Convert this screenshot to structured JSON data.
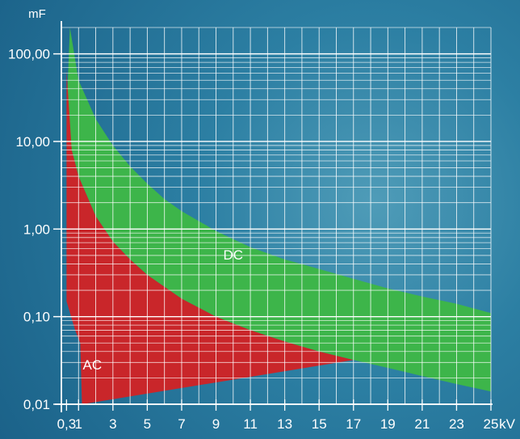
{
  "chart_data": {
    "type": "area",
    "title": "",
    "xlabel": "kV",
    "ylabel": "mF",
    "x_scale": "linear",
    "y_scale": "log",
    "xlim": [
      0,
      25
    ],
    "ylim": [
      0.01,
      200
    ],
    "grid": true,
    "x_tick_labels": [
      "0,3",
      "1",
      "3",
      "5",
      "7",
      "9",
      "11",
      "13",
      "15",
      "17",
      "19",
      "21",
      "23",
      "25"
    ],
    "x_tick_values": [
      0.3,
      1,
      3,
      5,
      7,
      9,
      11,
      13,
      15,
      17,
      19,
      21,
      23,
      25
    ],
    "y_tick_labels": [
      "0,01",
      "0,10",
      "1,00",
      "10,00",
      "100,00"
    ],
    "y_tick_values": [
      0.01,
      0.1,
      1,
      10,
      100
    ],
    "series": [
      {
        "name": "DC",
        "color": "#3db54a",
        "upper": [
          [
            0.5,
            200
          ],
          [
            1,
            50
          ],
          [
            2,
            18
          ],
          [
            3,
            9
          ],
          [
            4,
            5.2
          ],
          [
            5,
            3.3
          ],
          [
            6,
            2.2
          ],
          [
            7,
            1.6
          ],
          [
            9,
            0.95
          ],
          [
            11,
            0.62
          ],
          [
            13,
            0.45
          ],
          [
            15,
            0.35
          ],
          [
            17,
            0.27
          ],
          [
            19,
            0.21
          ],
          [
            21,
            0.17
          ],
          [
            23,
            0.14
          ],
          [
            25,
            0.11
          ]
        ],
        "lower": [
          [
            0.3,
            20
          ],
          [
            0.6,
            8
          ],
          [
            1,
            4
          ],
          [
            2,
            1.4
          ],
          [
            3,
            0.72
          ],
          [
            4,
            0.45
          ],
          [
            5,
            0.3
          ],
          [
            7,
            0.16
          ],
          [
            9,
            0.1
          ],
          [
            11,
            0.07
          ],
          [
            13,
            0.052
          ],
          [
            15,
            0.04
          ],
          [
            17,
            0.032
          ],
          [
            19,
            0.026
          ],
          [
            21,
            0.021
          ],
          [
            23,
            0.017
          ],
          [
            25,
            0.014
          ]
        ]
      },
      {
        "name": "AC",
        "color": "#c9262a",
        "upper": [
          [
            0.3,
            65
          ],
          [
            0.6,
            8
          ],
          [
            1,
            4
          ],
          [
            2,
            1.4
          ],
          [
            3,
            0.72
          ],
          [
            4,
            0.45
          ],
          [
            5,
            0.3
          ],
          [
            7,
            0.16
          ],
          [
            9,
            0.1
          ],
          [
            11,
            0.07
          ],
          [
            13,
            0.052
          ],
          [
            15,
            0.04
          ],
          [
            17,
            0.032
          ]
        ],
        "lower": [
          [
            0.3,
            0.15
          ],
          [
            0.8,
            0.07
          ],
          [
            1.1,
            0.05
          ],
          [
            1.2,
            0.01
          ]
        ]
      }
    ],
    "annotations": [
      "DC",
      "AC"
    ]
  }
}
